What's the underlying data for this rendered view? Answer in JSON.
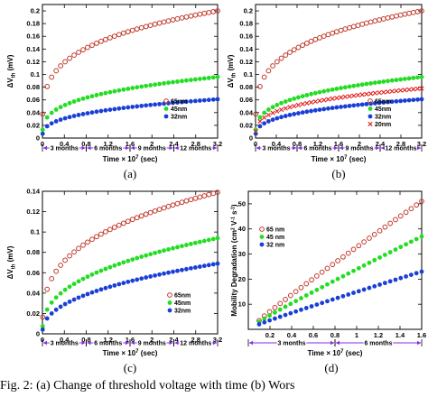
{
  "caption": "Fig. 2: (a) Change of threshold voltage with time (b) Wors",
  "chart_data": [
    {
      "type": "scatter",
      "panel_label": "(a)",
      "xlabel": "Time × 10^7 (sec)",
      "ylabel": "ΔV_th (mV)",
      "xlim": [
        0,
        3.2
      ],
      "ylim": [
        0,
        0.21
      ],
      "xticks": [
        0,
        0.4,
        0.8,
        1.2,
        1.6,
        2,
        2.4,
        2.8,
        3.2
      ],
      "yticks": [
        0,
        0.02,
        0.04,
        0.06,
        0.08,
        0.1,
        0.12,
        0.14,
        0.16,
        0.18,
        0.2
      ],
      "month_spans": [
        {
          "label": "3 months",
          "from": 0,
          "to": 0.8
        },
        {
          "label": "6 months",
          "from": 0.8,
          "to": 1.6
        },
        {
          "label": "9 months",
          "from": 1.6,
          "to": 2.4
        },
        {
          "label": "12 months",
          "from": 2.4,
          "to": 3.2
        }
      ],
      "legend_position": "center-right",
      "series": [
        {
          "name": "65nm",
          "marker": "open-circle",
          "color": "#c0392b",
          "end_value": 0.2,
          "exponent": 0.25,
          "points": 40
        },
        {
          "name": "45nm",
          "marker": "filled-circle",
          "color": "#22dd22",
          "end_value": 0.096,
          "exponent": 0.3,
          "points": 40
        },
        {
          "name": "32nm",
          "marker": "filled-circle",
          "color": "#1a3fd6",
          "end_value": 0.061,
          "exponent": 0.33,
          "points": 40
        }
      ]
    },
    {
      "type": "scatter",
      "panel_label": "(b)",
      "xlabel": "Time × 10^7 (sec)",
      "ylabel": "ΔV_th (mV)",
      "xlim": [
        0,
        3.2
      ],
      "ylim": [
        0,
        0.21
      ],
      "xticks": [
        0,
        0.4,
        0.8,
        1.2,
        1.6,
        2,
        2.4,
        2.8,
        3.2
      ],
      "yticks": [
        0,
        0.02,
        0.04,
        0.06,
        0.08,
        0.1,
        0.12,
        0.14,
        0.16,
        0.18,
        0.2
      ],
      "month_spans": [
        {
          "label": "3 months",
          "from": 0,
          "to": 0.8
        },
        {
          "label": "6 months",
          "from": 0.8,
          "to": 1.6
        },
        {
          "label": "9 months",
          "from": 1.6,
          "to": 2.4
        },
        {
          "label": "12 months",
          "from": 2.4,
          "to": 3.2
        }
      ],
      "legend_position": "center-right",
      "series": [
        {
          "name": "65nm",
          "marker": "open-circle",
          "color": "#c0392b",
          "end_value": 0.2,
          "exponent": 0.25,
          "points": 40
        },
        {
          "name": "45nm",
          "marker": "filled-circle",
          "color": "#22dd22",
          "end_value": 0.096,
          "exponent": 0.3,
          "points": 40
        },
        {
          "name": "32nm",
          "marker": "filled-circle",
          "color": "#1a3fd6",
          "end_value": 0.061,
          "exponent": 0.33,
          "points": 40
        },
        {
          "name": "20nm",
          "marker": "cross",
          "color": "#e02020",
          "end_value": 0.078,
          "exponent": 0.3,
          "points": 40
        }
      ]
    },
    {
      "type": "scatter",
      "panel_label": "(c)",
      "xlabel": "Time × 10^7 (sec)",
      "ylabel": "ΔV_th (mV)",
      "xlim": [
        0,
        3.2
      ],
      "ylim": [
        0,
        0.14
      ],
      "xticks": [
        0,
        0.4,
        0.8,
        1.2,
        1.6,
        2,
        2.4,
        2.8,
        3.2
      ],
      "yticks": [
        0,
        0.02,
        0.04,
        0.06,
        0.08,
        0.1,
        0.12,
        0.14
      ],
      "month_spans": [
        {
          "label": "3 months",
          "from": 0,
          "to": 0.8
        },
        {
          "label": "6 months",
          "from": 0.8,
          "to": 1.6
        },
        {
          "label": "9 months",
          "from": 1.6,
          "to": 2.4
        },
        {
          "label": "12 months",
          "from": 2.4,
          "to": 3.2
        }
      ],
      "legend_position": "center-right",
      "series": [
        {
          "name": "65nm",
          "marker": "open-circle",
          "color": "#c0392b",
          "end_value": 0.139,
          "exponent": 0.32,
          "points": 40
        },
        {
          "name": "45nm",
          "marker": "filled-circle",
          "color": "#22dd22",
          "end_value": 0.094,
          "exponent": 0.38,
          "points": 40
        },
        {
          "name": "32nm",
          "marker": "filled-circle",
          "color": "#1a3fd6",
          "end_value": 0.069,
          "exponent": 0.42,
          "points": 40
        }
      ]
    },
    {
      "type": "scatter",
      "panel_label": "(d)",
      "xlabel": "Time × 10^7 (sec)",
      "ylabel": "Mobility Degradation (cm^2 V^-1 s^-1)",
      "xlim": [
        0,
        1.6
      ],
      "ylim": [
        0,
        55
      ],
      "xticks": [
        0.2,
        0.4,
        0.6,
        0.8,
        1,
        1.2,
        1.4,
        1.6
      ],
      "yticks": [
        10,
        20,
        30,
        40,
        50
      ],
      "month_spans": [
        {
          "label": "3 months",
          "from": 0,
          "to": 0.8
        },
        {
          "label": "6 months",
          "from": 0.8,
          "to": 1.6
        }
      ],
      "legend_position": "top-left",
      "series": [
        {
          "name": "65 nm",
          "marker": "open-circle",
          "color": "#c0392b",
          "start_value": 3.5,
          "end_value": 51,
          "points": 32
        },
        {
          "name": "45 nm",
          "marker": "filled-circle",
          "color": "#22dd22",
          "start_value": 3,
          "end_value": 37,
          "points": 32
        },
        {
          "name": "32 nm",
          "marker": "filled-circle",
          "color": "#1a3fd6",
          "start_value": 2,
          "end_value": 23,
          "points": 32
        }
      ]
    }
  ]
}
